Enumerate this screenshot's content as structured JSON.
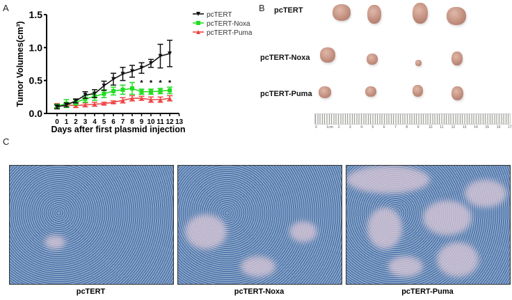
{
  "panels": {
    "a": "A",
    "b": "B",
    "c": "C"
  },
  "chart_data": {
    "type": "line",
    "xlabel": "Days after first plasmid injection",
    "ylabel": "Tumor Volumes(cm³)",
    "x": [
      0,
      1,
      2,
      3,
      4,
      5,
      6,
      7,
      8,
      9,
      10,
      11,
      12
    ],
    "xticks": [
      "0",
      "1",
      "2",
      "3",
      "4",
      "5",
      "6",
      "7",
      "8",
      "9",
      "10",
      "11",
      "12",
      "13"
    ],
    "yticks": [
      "0.0",
      "0.5",
      "1.0",
      "1.5"
    ],
    "xlim": [
      -1,
      13
    ],
    "ylim": [
      0,
      1.5
    ],
    "legend_position": "top-right",
    "significance_marker": "*",
    "significance_days": [
      9,
      10,
      11,
      12
    ],
    "series": [
      {
        "name": "pcTERT",
        "color": "#111111",
        "marker": "triangle-down",
        "values": [
          0.1,
          0.13,
          0.19,
          0.28,
          0.3,
          0.42,
          0.52,
          0.6,
          0.64,
          0.69,
          0.76,
          0.87,
          0.91
        ],
        "errors": [
          0.03,
          0.03,
          0.03,
          0.05,
          0.06,
          0.07,
          0.09,
          0.1,
          0.09,
          0.08,
          0.06,
          0.18,
          0.2
        ]
      },
      {
        "name": "pcTERT-Noxa",
        "color": "#22dd22",
        "marker": "square",
        "values": [
          0.11,
          0.15,
          0.17,
          0.22,
          0.26,
          0.3,
          0.34,
          0.36,
          0.38,
          0.33,
          0.33,
          0.34,
          0.35
        ],
        "errors": [
          0.03,
          0.06,
          0.04,
          0.05,
          0.06,
          0.06,
          0.06,
          0.07,
          0.09,
          0.04,
          0.04,
          0.04,
          0.05
        ]
      },
      {
        "name": "pcTERT-Puma",
        "color": "#ee4444",
        "marker": "triangle-up",
        "values": [
          0.12,
          0.13,
          0.12,
          0.13,
          0.14,
          0.15,
          0.17,
          0.2,
          0.23,
          0.23,
          0.21,
          0.21,
          0.23
        ],
        "errors": [
          0.03,
          0.03,
          0.03,
          0.03,
          0.03,
          0.02,
          0.02,
          0.04,
          0.04,
          0.03,
          0.04,
          0.04,
          0.04
        ]
      }
    ]
  },
  "photo": {
    "rows": [
      "pcTERT",
      "pcTERT-Noxa",
      "pcTERT-Puma"
    ],
    "ruler_ticks": [
      "0",
      "1cm",
      "2",
      "3",
      "4",
      "5",
      "6",
      "7",
      "8",
      "9",
      "10",
      "11",
      "12",
      "13",
      "14",
      "15",
      "16",
      "17"
    ]
  },
  "histology": {
    "captions": [
      "pcTERT",
      "pcTERT-Noxa",
      "pcTERT-Puma"
    ]
  }
}
